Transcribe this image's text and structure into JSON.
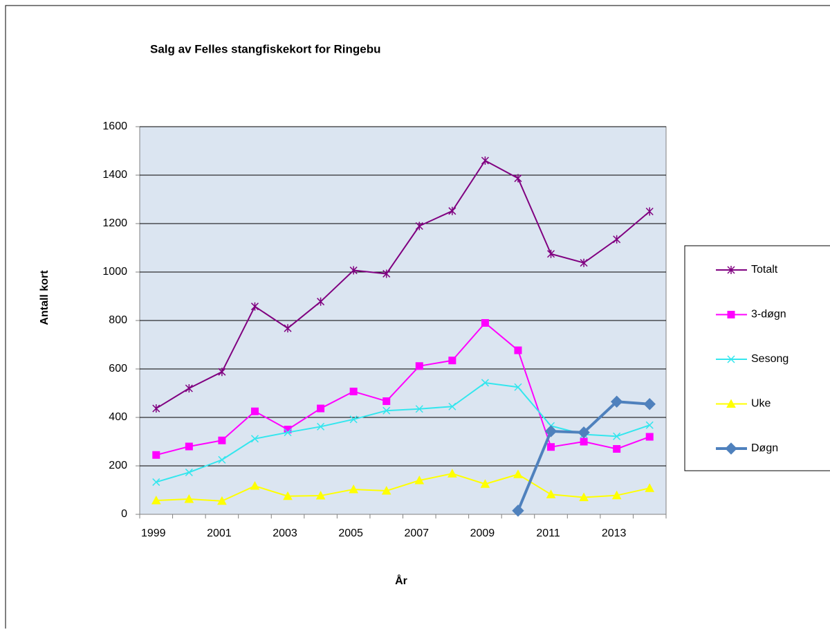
{
  "chart_data": {
    "type": "line",
    "title": "Salg av Felles stangfiskekort for Ringebu",
    "x_label": "År",
    "y_label": "Antall kort",
    "categories": [
      "1999",
      null,
      "2001",
      null,
      "2003",
      null,
      "2005",
      null,
      "2007",
      null,
      "2009",
      null,
      "2011",
      null,
      "2013",
      null
    ],
    "series": [
      {
        "name": "Totalt",
        "color": "#800080",
        "marker": "star",
        "values": [
          437,
          520,
          588,
          858,
          768,
          878,
          1007,
          993,
          1190,
          1252,
          1460,
          1387,
          1075,
          1038,
          1135,
          1250
        ]
      },
      {
        "name": "3-døgn",
        "color": "#ff00ff",
        "marker": "square",
        "values": [
          245,
          280,
          305,
          425,
          350,
          437,
          507,
          467,
          612,
          635,
          790,
          677,
          278,
          300,
          270,
          320
        ]
      },
      {
        "name": "Sesong",
        "color": "#33e6ee",
        "marker": "x",
        "values": [
          133,
          173,
          225,
          312,
          338,
          362,
          392,
          428,
          435,
          445,
          543,
          525,
          365,
          330,
          322,
          368
        ]
      },
      {
        "name": "Uke",
        "color": "#ffff00",
        "marker": "triangle",
        "values": [
          57,
          63,
          55,
          117,
          75,
          77,
          103,
          97,
          140,
          168,
          125,
          165,
          82,
          70,
          78,
          108
        ]
      },
      {
        "name": "Døgn",
        "color": "#4f81bd",
        "marker": "diamond",
        "values": [
          null,
          null,
          null,
          null,
          null,
          null,
          null,
          null,
          null,
          null,
          null,
          15,
          343,
          338,
          465,
          455
        ]
      }
    ],
    "ylim": [
      0,
      1600
    ],
    "yticks": [
      0,
      200,
      400,
      600,
      800,
      1000,
      1200,
      1400,
      1600
    ],
    "grid": true,
    "legend": "right"
  }
}
